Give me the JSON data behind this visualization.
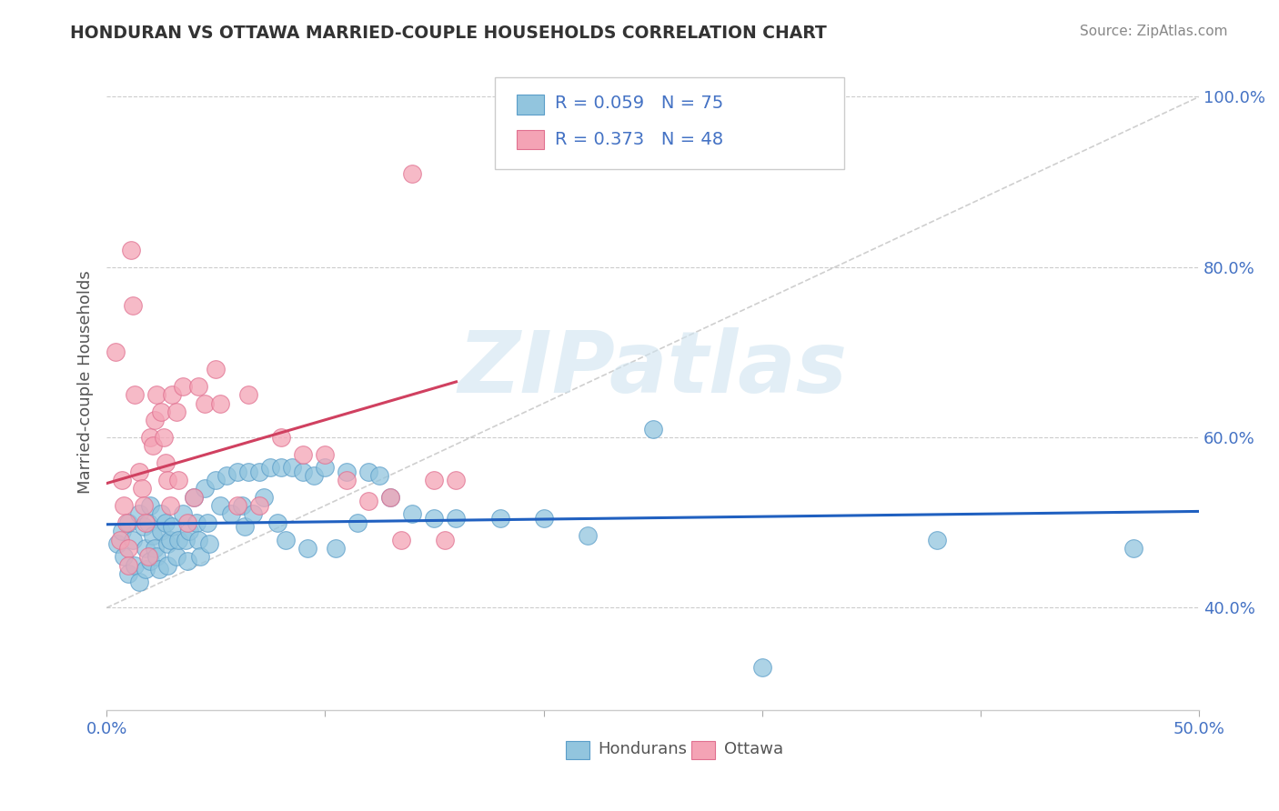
{
  "title": "HONDURAN VS OTTAWA MARRIED-COUPLE HOUSEHOLDS CORRELATION CHART",
  "source": "Source: ZipAtlas.com",
  "ylabel": "Married-couple Households",
  "ylabel_ticks": [
    "40.0%",
    "60.0%",
    "80.0%",
    "100.0%"
  ],
  "ylabel_tick_vals": [
    0.4,
    0.6,
    0.8,
    1.0
  ],
  "xlim": [
    0.0,
    0.5
  ],
  "ylim": [
    0.28,
    1.05
  ],
  "blue_color": "#92c5de",
  "pink_color": "#f4a3b5",
  "blue_edge": "#5b9ec9",
  "pink_edge": "#e07090",
  "trend_blue": "#2060c0",
  "trend_pink": "#d04060",
  "ref_line_color": "#cccccc",
  "watermark": "ZIPatlas",
  "blue_R": 0.059,
  "blue_N": 75,
  "pink_R": 0.373,
  "pink_N": 48,
  "blue_scatter_x": [
    0.005,
    0.007,
    0.008,
    0.01,
    0.01,
    0.012,
    0.013,
    0.015,
    0.015,
    0.017,
    0.018,
    0.018,
    0.019,
    0.02,
    0.02,
    0.021,
    0.022,
    0.023,
    0.024,
    0.025,
    0.025,
    0.027,
    0.028,
    0.028,
    0.029,
    0.03,
    0.032,
    0.033,
    0.035,
    0.036,
    0.037,
    0.038,
    0.04,
    0.041,
    0.042,
    0.043,
    0.045,
    0.046,
    0.047,
    0.05,
    0.052,
    0.055,
    0.057,
    0.06,
    0.062,
    0.063,
    0.065,
    0.067,
    0.07,
    0.072,
    0.075,
    0.078,
    0.08,
    0.082,
    0.085,
    0.09,
    0.092,
    0.095,
    0.1,
    0.105,
    0.11,
    0.115,
    0.12,
    0.125,
    0.13,
    0.14,
    0.15,
    0.16,
    0.18,
    0.2,
    0.22,
    0.25,
    0.3,
    0.38,
    0.47
  ],
  "blue_scatter_y": [
    0.475,
    0.49,
    0.46,
    0.5,
    0.44,
    0.48,
    0.45,
    0.51,
    0.43,
    0.495,
    0.47,
    0.445,
    0.5,
    0.52,
    0.455,
    0.485,
    0.47,
    0.46,
    0.445,
    0.51,
    0.49,
    0.5,
    0.475,
    0.45,
    0.48,
    0.495,
    0.46,
    0.48,
    0.51,
    0.48,
    0.455,
    0.49,
    0.53,
    0.5,
    0.48,
    0.46,
    0.54,
    0.5,
    0.475,
    0.55,
    0.52,
    0.555,
    0.51,
    0.56,
    0.52,
    0.495,
    0.56,
    0.51,
    0.56,
    0.53,
    0.565,
    0.5,
    0.565,
    0.48,
    0.565,
    0.56,
    0.47,
    0.555,
    0.565,
    0.47,
    0.56,
    0.5,
    0.56,
    0.555,
    0.53,
    0.51,
    0.505,
    0.505,
    0.505,
    0.505,
    0.485,
    0.61,
    0.33,
    0.48,
    0.47
  ],
  "pink_scatter_x": [
    0.004,
    0.006,
    0.007,
    0.008,
    0.009,
    0.01,
    0.01,
    0.011,
    0.012,
    0.013,
    0.015,
    0.016,
    0.017,
    0.018,
    0.019,
    0.02,
    0.021,
    0.022,
    0.023,
    0.025,
    0.026,
    0.027,
    0.028,
    0.029,
    0.03,
    0.032,
    0.033,
    0.035,
    0.037,
    0.04,
    0.042,
    0.045,
    0.05,
    0.052,
    0.06,
    0.065,
    0.07,
    0.08,
    0.09,
    0.1,
    0.11,
    0.12,
    0.13,
    0.135,
    0.14,
    0.15,
    0.155,
    0.16
  ],
  "pink_scatter_y": [
    0.7,
    0.48,
    0.55,
    0.52,
    0.5,
    0.47,
    0.45,
    0.82,
    0.755,
    0.65,
    0.56,
    0.54,
    0.52,
    0.5,
    0.46,
    0.6,
    0.59,
    0.62,
    0.65,
    0.63,
    0.6,
    0.57,
    0.55,
    0.52,
    0.65,
    0.63,
    0.55,
    0.66,
    0.5,
    0.53,
    0.66,
    0.64,
    0.68,
    0.64,
    0.52,
    0.65,
    0.52,
    0.6,
    0.58,
    0.58,
    0.55,
    0.525,
    0.53,
    0.48,
    0.91,
    0.55,
    0.48,
    0.55
  ]
}
